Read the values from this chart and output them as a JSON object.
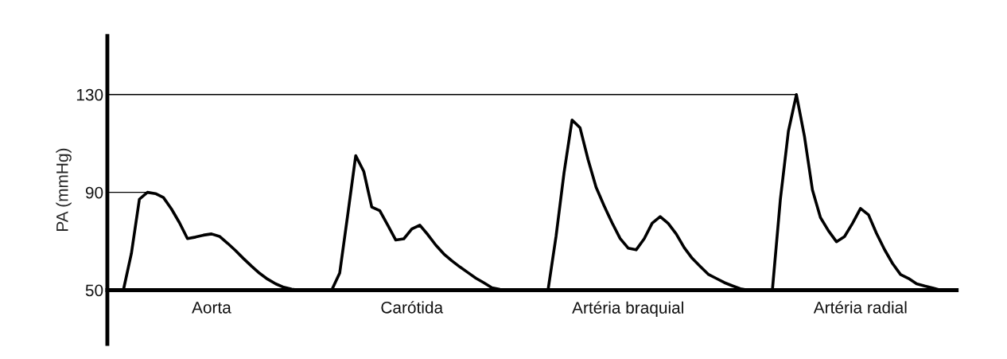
{
  "chart_data": {
    "type": "line",
    "ylabel": "PA (mmHg)",
    "ylim": [
      28,
      154
    ],
    "yticks": [
      50,
      90,
      130
    ],
    "categories": [
      null,
      null,
      null,
      null,
      null,
      null,
      null,
      null,
      null,
      null,
      null,
      null,
      null,
      "Aorta",
      null,
      null,
      null,
      null,
      null,
      null,
      null,
      null,
      null,
      null,
      null,
      null,
      null,
      null,
      null,
      null,
      null,
      null,
      null,
      null,
      null,
      null,
      null,
      null,
      "Carótida",
      null,
      null,
      null,
      null,
      null,
      null,
      null,
      null,
      null,
      null,
      null,
      null,
      null,
      null,
      null,
      null,
      null,
      null,
      null,
      null,
      null,
      null,
      null,
      null,
      null,
      null,
      "Artéria braquial",
      null,
      null,
      null,
      null,
      null,
      null,
      null,
      null,
      null,
      null,
      null,
      null,
      null,
      null,
      null,
      null,
      null,
      null,
      null,
      null,
      null,
      null,
      null,
      null,
      null,
      null,
      null,
      null,
      "Artéria radial",
      null,
      null,
      null,
      null,
      null,
      null,
      null,
      null,
      null,
      null,
      null,
      null
    ],
    "grid": false,
    "line_style": "solid",
    "ref_lines": [
      {
        "axis": "y",
        "value": 130,
        "color": "#000000"
      },
      {
        "axis": "y",
        "value": 50,
        "color": "#000000"
      }
    ],
    "series": [
      {
        "color": "#000000",
        "values": [
          null,
          null,
          50,
          65,
          87.2,
          90,
          89.5,
          87.9,
          83.2,
          77.6,
          71.1,
          71.7,
          72.5,
          73.0,
          72.0,
          69.2,
          66.2,
          62.9,
          59.8,
          56.9,
          54.5,
          52.6,
          51.2,
          50.4,
          50,
          null,
          null,
          null,
          50,
          57,
          80.8,
          105,
          98.6,
          84.0,
          82.5,
          76.6,
          70.5,
          71,
          75,
          76.6,
          72.7,
          68.4,
          64.8,
          62.0,
          59.5,
          57.2,
          54.9,
          53.0,
          51.0,
          50.3,
          50,
          null,
          null,
          null,
          null,
          50,
          72,
          98,
          119.6,
          116.4,
          103.4,
          92.1,
          84.5,
          77.5,
          71.1,
          67.2,
          66.5,
          71,
          77.4,
          80.1,
          77.3,
          73,
          67.4,
          63,
          59.7,
          56.5,
          54.8,
          53.1,
          51.8,
          50.6,
          50,
          null,
          null,
          50,
          87.2,
          115,
          130,
          113,
          91,
          79.7,
          74.3,
          69.8,
          71.9,
          77.3,
          83.4,
          80.8,
          73.2,
          66.6,
          60.9,
          56.4,
          54.8,
          52.6,
          51.7,
          50.9,
          50,
          null,
          null
        ]
      },
      {
        "color": "#000000",
        "values": [
          90,
          90,
          90,
          90,
          90,
          90,
          null,
          null,
          null,
          null,
          null,
          null,
          null,
          null,
          null,
          null,
          null,
          null,
          null,
          null,
          null,
          null,
          null,
          null,
          null,
          null,
          null,
          null,
          null,
          null,
          null,
          null,
          null,
          null,
          null,
          null,
          null,
          null,
          null,
          null,
          null,
          null,
          null,
          null,
          null,
          null,
          null,
          null,
          null,
          null,
          null,
          null,
          null,
          null,
          null,
          null,
          null,
          null,
          null,
          null,
          null,
          null,
          null,
          null,
          null,
          null,
          null,
          null,
          null,
          null,
          null,
          null,
          null,
          null,
          null,
          null,
          null,
          null,
          null,
          null,
          null,
          null,
          null,
          null,
          null,
          null,
          null,
          null,
          null,
          null,
          null,
          null,
          null,
          null,
          null,
          null,
          null,
          null,
          null,
          null,
          null,
          null,
          null,
          null,
          null,
          null,
          null
        ]
      }
    ]
  }
}
